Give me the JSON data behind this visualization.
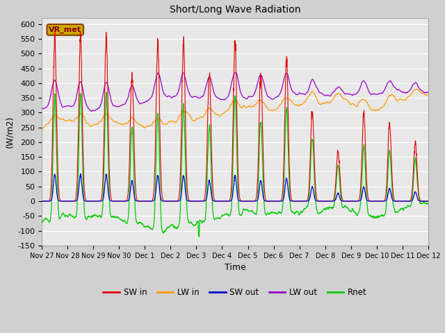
{
  "title": "Short/Long Wave Radiation",
  "xlabel": "Time",
  "ylabel": "(W/m2)",
  "ylim": [
    -150,
    620
  ],
  "yticks": [
    -150,
    -100,
    -50,
    0,
    50,
    100,
    150,
    200,
    250,
    300,
    350,
    400,
    450,
    500,
    550,
    600
  ],
  "fig_bg_color": "#d0d0d0",
  "plot_bg_color": "#e8e8e8",
  "grid_color": "#ffffff",
  "station_label": "VR_met",
  "series": {
    "SW_in": {
      "color": "#dd0000",
      "label": "SW in"
    },
    "LW_in": {
      "color": "#ff9900",
      "label": "LW in"
    },
    "SW_out": {
      "color": "#0000cc",
      "label": "SW out"
    },
    "LW_out": {
      "color": "#9900cc",
      "label": "LW out"
    },
    "Rnet": {
      "color": "#00cc00",
      "label": "Rnet"
    }
  },
  "n_points": 2160,
  "tick_labels": [
    "Nov 27",
    "Nov 28",
    "Nov 29",
    "Nov 30",
    "Dec 1",
    "Dec 2",
    "Dec 3",
    "Dec 4",
    "Dec 5",
    "Dec 6",
    "Dec 7",
    "Dec 8",
    "Dec 9",
    "Dec 10",
    "Dec 11",
    "Dec 12"
  ],
  "sw_peaks": [
    560,
    555,
    555,
    430,
    540,
    540,
    440,
    540,
    440,
    480,
    305,
    170,
    295,
    265,
    200
  ],
  "legend_ncol": 5
}
